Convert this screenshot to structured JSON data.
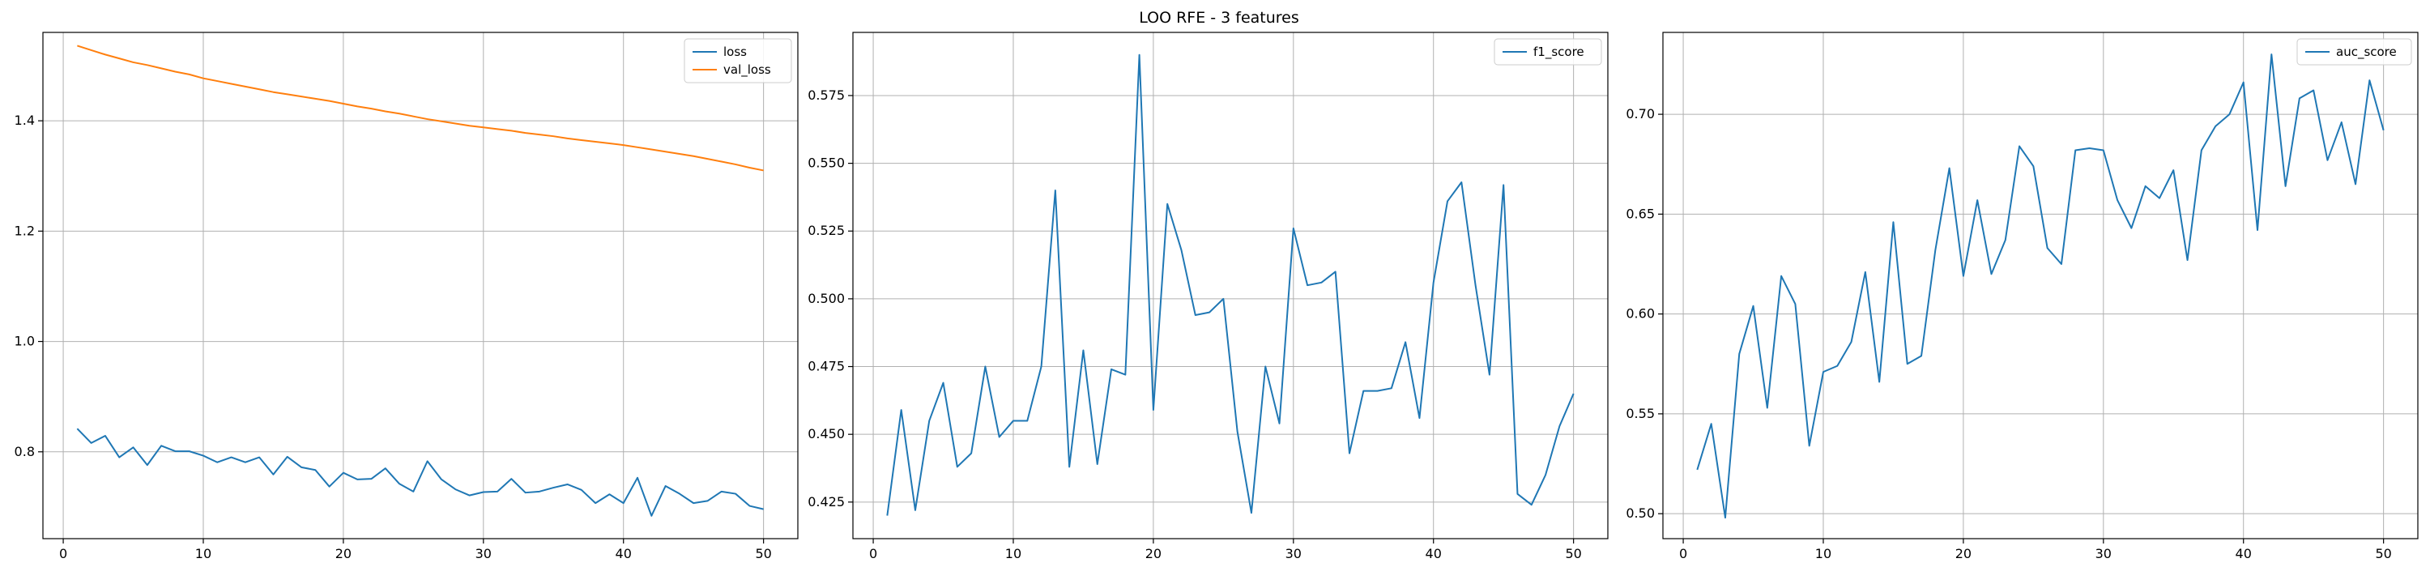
{
  "figure": {
    "suptitle": "LOO RFE - 3 features"
  },
  "colors": {
    "blue": "#1f77b4",
    "orange": "#ff7f0e",
    "grid": "#b0b0b0"
  },
  "chart_data": [
    {
      "type": "line",
      "title": "",
      "xlabel": "",
      "ylabel": "",
      "xlim": [
        -1.45,
        52.45
      ],
      "ylim": [
        0.6426,
        1.5602
      ],
      "xticks": [
        0,
        10,
        20,
        30,
        40,
        50
      ],
      "yticks": [
        0.8,
        1.0,
        1.2,
        1.4
      ],
      "ytick_labels": [
        "0.8",
        "1.0",
        "1.2",
        "1.4"
      ],
      "grid": true,
      "legend": "top-right",
      "x": [
        1,
        2,
        3,
        4,
        5,
        6,
        7,
        8,
        9,
        10,
        11,
        12,
        13,
        14,
        15,
        16,
        17,
        18,
        19,
        20,
        21,
        22,
        23,
        24,
        25,
        26,
        27,
        28,
        29,
        30,
        31,
        32,
        33,
        34,
        35,
        36,
        37,
        38,
        39,
        40,
        41,
        42,
        43,
        44,
        45,
        46,
        47,
        48,
        49,
        50
      ],
      "series": [
        {
          "name": "loss",
          "color": "#1f77b4",
          "values": [
            0.842,
            0.816,
            0.829,
            0.79,
            0.808,
            0.776,
            0.811,
            0.801,
            0.801,
            0.793,
            0.781,
            0.79,
            0.781,
            0.79,
            0.759,
            0.791,
            0.772,
            0.767,
            0.737,
            0.762,
            0.75,
            0.751,
            0.77,
            0.742,
            0.728,
            0.783,
            0.75,
            0.732,
            0.721,
            0.727,
            0.728,
            0.751,
            0.726,
            0.728,
            0.735,
            0.741,
            0.731,
            0.707,
            0.723,
            0.707,
            0.753,
            0.684,
            0.738,
            0.724,
            0.707,
            0.711,
            0.728,
            0.724,
            0.702,
            0.696
          ]
        },
        {
          "name": "val_loss",
          "color": "#ff7f0e",
          "values": [
            1.536,
            1.528,
            1.52,
            1.513,
            1.506,
            1.501,
            1.495,
            1.489,
            1.484,
            1.477,
            1.472,
            1.467,
            1.462,
            1.457,
            1.452,
            1.448,
            1.444,
            1.44,
            1.436,
            1.431,
            1.426,
            1.422,
            1.417,
            1.413,
            1.408,
            1.403,
            1.399,
            1.395,
            1.391,
            1.388,
            1.385,
            1.382,
            1.378,
            1.375,
            1.372,
            1.368,
            1.365,
            1.362,
            1.359,
            1.356,
            1.352,
            1.348,
            1.344,
            1.34,
            1.336,
            1.331,
            1.326,
            1.321,
            1.315,
            1.31
          ]
        }
      ]
    },
    {
      "type": "line",
      "title": "",
      "xlabel": "",
      "ylabel": "",
      "xlim": [
        -1.45,
        52.45
      ],
      "ylim": [
        0.4115,
        0.5983
      ],
      "xticks": [
        0,
        10,
        20,
        30,
        40,
        50
      ],
      "yticks": [
        0.425,
        0.45,
        0.475,
        0.5,
        0.525,
        0.55,
        0.575
      ],
      "ytick_labels": [
        "0.425",
        "0.450",
        "0.475",
        "0.500",
        "0.525",
        "0.550",
        "0.575"
      ],
      "grid": true,
      "legend": "top-right",
      "x": [
        1,
        2,
        3,
        4,
        5,
        6,
        7,
        8,
        9,
        10,
        11,
        12,
        13,
        14,
        15,
        16,
        17,
        18,
        19,
        20,
        21,
        22,
        23,
        24,
        25,
        26,
        27,
        28,
        29,
        30,
        31,
        32,
        33,
        34,
        35,
        36,
        37,
        38,
        39,
        40,
        41,
        42,
        43,
        44,
        45,
        46,
        47,
        48,
        49,
        50
      ],
      "series": [
        {
          "name": "f1_score",
          "color": "#1f77b4",
          "values": [
            0.42,
            0.459,
            0.422,
            0.455,
            0.469,
            0.438,
            0.443,
            0.475,
            0.449,
            0.455,
            0.455,
            0.475,
            0.54,
            0.438,
            0.481,
            0.439,
            0.474,
            0.472,
            0.59,
            0.459,
            0.535,
            0.518,
            0.494,
            0.495,
            0.5,
            0.451,
            0.421,
            0.475,
            0.454,
            0.526,
            0.505,
            0.506,
            0.51,
            0.443,
            0.466,
            0.466,
            0.467,
            0.484,
            0.456,
            0.506,
            0.536,
            0.543,
            0.505,
            0.472,
            0.542,
            0.428,
            0.424,
            0.435,
            0.453,
            0.465
          ]
        }
      ]
    },
    {
      "type": "line",
      "title": "",
      "xlabel": "",
      "ylabel": "",
      "xlim": [
        -1.45,
        52.45
      ],
      "ylim": [
        0.4875,
        0.741
      ],
      "xticks": [
        0,
        10,
        20,
        30,
        40,
        50
      ],
      "yticks": [
        0.5,
        0.55,
        0.6,
        0.65,
        0.7
      ],
      "ytick_labels": [
        "0.50",
        "0.55",
        "0.60",
        "0.65",
        "0.70"
      ],
      "grid": true,
      "legend": "top-right",
      "x": [
        1,
        2,
        3,
        4,
        5,
        6,
        7,
        8,
        9,
        10,
        11,
        12,
        13,
        14,
        15,
        16,
        17,
        18,
        19,
        20,
        21,
        22,
        23,
        24,
        25,
        26,
        27,
        28,
        29,
        30,
        31,
        32,
        33,
        34,
        35,
        36,
        37,
        38,
        39,
        40,
        41,
        42,
        43,
        44,
        45,
        46,
        47,
        48,
        49,
        50
      ],
      "series": [
        {
          "name": "auc_score",
          "color": "#1f77b4",
          "values": [
            0.522,
            0.545,
            0.498,
            0.58,
            0.604,
            0.553,
            0.619,
            0.605,
            0.534,
            0.571,
            0.574,
            0.586,
            0.621,
            0.566,
            0.646,
            0.575,
            0.579,
            0.632,
            0.673,
            0.619,
            0.657,
            0.62,
            0.637,
            0.684,
            0.674,
            0.633,
            0.625,
            0.682,
            0.683,
            0.682,
            0.657,
            0.643,
            0.664,
            0.658,
            0.672,
            0.627,
            0.682,
            0.694,
            0.7,
            0.716,
            0.642,
            0.73,
            0.664,
            0.708,
            0.712,
            0.677,
            0.696,
            0.665,
            0.717,
            0.692
          ]
        }
      ]
    }
  ]
}
